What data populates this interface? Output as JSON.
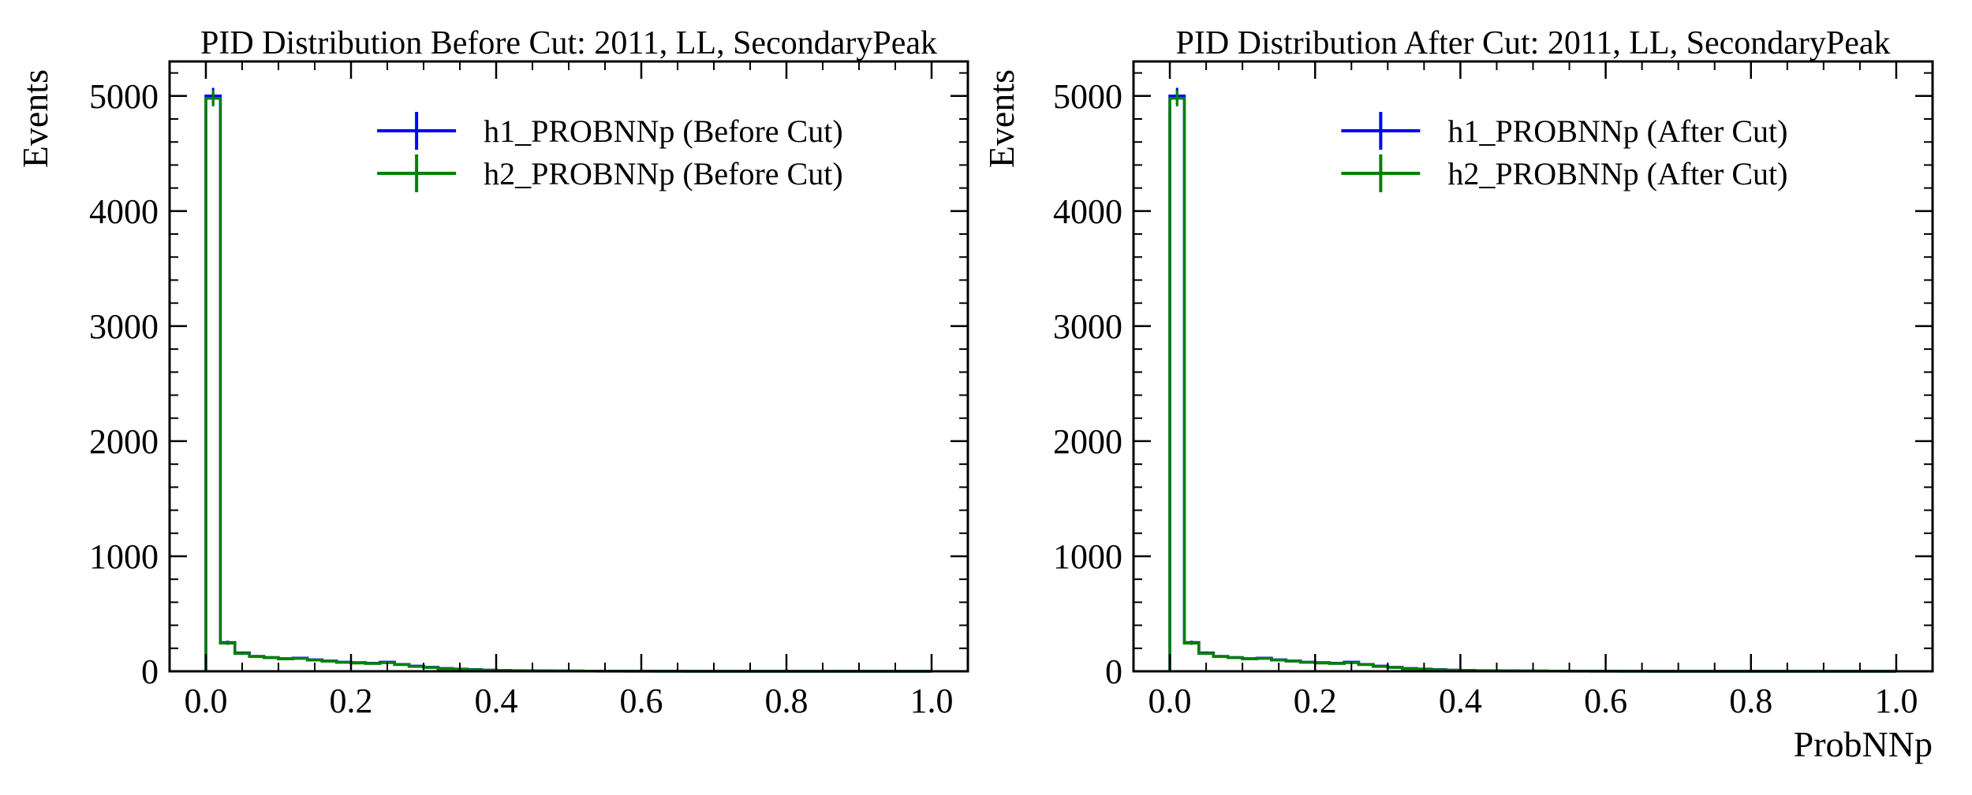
{
  "chart_data": [
    {
      "type": "histogram",
      "title": "PID Distribution Before Cut: 2011, LL, SecondaryPeak",
      "xlabel": "",
      "ylabel": "Events",
      "xlim": [
        -0.05,
        1.05
      ],
      "ylim": [
        0,
        5300
      ],
      "xticks": [
        0.0,
        0.2,
        0.4,
        0.6,
        0.8,
        1.0
      ],
      "xtick_labels": [
        "0.0",
        "0.2",
        "0.4",
        "0.6",
        "0.8",
        "1.0"
      ],
      "yticks": [
        0,
        1000,
        2000,
        3000,
        4000,
        5000
      ],
      "ytick_labels": [
        "0",
        "1000",
        "2000",
        "3000",
        "4000",
        "5000"
      ],
      "legend": "top-right",
      "bin_edges": [
        0.0,
        0.02,
        0.04,
        0.06,
        0.08,
        0.1,
        0.12,
        0.14,
        0.16,
        0.18,
        0.2,
        0.22,
        0.24,
        0.26,
        0.28,
        0.3,
        0.32,
        0.34,
        0.36,
        0.38,
        0.4,
        0.42,
        0.44,
        0.46,
        0.48,
        0.5,
        0.52,
        0.54,
        0.56,
        0.58,
        0.6,
        0.62,
        0.64,
        0.66,
        0.68,
        0.7,
        0.72,
        0.74,
        0.76,
        0.78,
        0.8,
        0.82,
        0.84,
        0.86,
        0.88,
        0.9,
        0.92,
        0.94,
        0.96,
        0.98,
        1.0
      ],
      "series": [
        {
          "name": "h1_PROBNNp (Before Cut)",
          "color": "#0000ff",
          "values": [
            5000,
            250,
            160,
            130,
            120,
            110,
            115,
            100,
            90,
            80,
            75,
            70,
            80,
            60,
            45,
            35,
            25,
            20,
            15,
            10,
            8,
            6,
            5,
            4,
            3,
            3,
            2,
            2,
            2,
            1,
            1,
            1,
            1,
            0,
            0,
            0,
            0,
            0,
            0,
            0,
            0,
            0,
            0,
            0,
            0,
            0,
            0,
            0,
            0,
            0
          ]
        },
        {
          "name": "h2_PROBNNp (Before Cut)",
          "color": "#008000",
          "values": [
            4980,
            245,
            155,
            128,
            118,
            108,
            112,
            98,
            88,
            78,
            72,
            68,
            75,
            58,
            42,
            33,
            23,
            18,
            14,
            9,
            7,
            5,
            4,
            3,
            3,
            2,
            2,
            1,
            1,
            1,
            1,
            0,
            0,
            0,
            0,
            0,
            0,
            0,
            0,
            0,
            0,
            0,
            0,
            0,
            0,
            0,
            0,
            0,
            0,
            0
          ]
        }
      ]
    },
    {
      "type": "histogram",
      "title": "PID Distribution After Cut: 2011, LL, SecondaryPeak",
      "xlabel": "ProbNNp",
      "ylabel": "Events",
      "xlim": [
        -0.05,
        1.05
      ],
      "ylim": [
        0,
        5300
      ],
      "xticks": [
        0.0,
        0.2,
        0.4,
        0.6,
        0.8,
        1.0
      ],
      "xtick_labels": [
        "0.0",
        "0.2",
        "0.4",
        "0.6",
        "0.8",
        "1.0"
      ],
      "yticks": [
        0,
        1000,
        2000,
        3000,
        4000,
        5000
      ],
      "ytick_labels": [
        "0",
        "1000",
        "2000",
        "3000",
        "4000",
        "5000"
      ],
      "legend": "top-right",
      "bin_edges": [
        0.0,
        0.02,
        0.04,
        0.06,
        0.08,
        0.1,
        0.12,
        0.14,
        0.16,
        0.18,
        0.2,
        0.22,
        0.24,
        0.26,
        0.28,
        0.3,
        0.32,
        0.34,
        0.36,
        0.38,
        0.4,
        0.42,
        0.44,
        0.46,
        0.48,
        0.5,
        0.52,
        0.54,
        0.56,
        0.58,
        0.6,
        0.62,
        0.64,
        0.66,
        0.68,
        0.7,
        0.72,
        0.74,
        0.76,
        0.78,
        0.8,
        0.82,
        0.84,
        0.86,
        0.88,
        0.9,
        0.92,
        0.94,
        0.96,
        0.98,
        1.0
      ],
      "series": [
        {
          "name": "h1_PROBNNp (After Cut)",
          "color": "#0000ff",
          "values": [
            5000,
            250,
            160,
            130,
            120,
            110,
            115,
            100,
            90,
            80,
            75,
            70,
            80,
            60,
            45,
            35,
            25,
            20,
            15,
            10,
            8,
            6,
            5,
            4,
            3,
            3,
            2,
            2,
            2,
            1,
            1,
            1,
            1,
            0,
            0,
            0,
            0,
            0,
            0,
            0,
            0,
            0,
            0,
            0,
            0,
            0,
            0,
            0,
            0,
            0
          ]
        },
        {
          "name": "h2_PROBNNp (After Cut)",
          "color": "#008000",
          "values": [
            4980,
            245,
            155,
            128,
            118,
            108,
            112,
            98,
            88,
            78,
            72,
            68,
            75,
            58,
            42,
            33,
            23,
            18,
            14,
            9,
            7,
            5,
            4,
            3,
            3,
            2,
            2,
            1,
            1,
            1,
            1,
            0,
            0,
            0,
            0,
            0,
            0,
            0,
            0,
            0,
            0,
            0,
            0,
            0,
            0,
            0,
            0,
            0,
            0,
            0
          ]
        }
      ]
    }
  ]
}
